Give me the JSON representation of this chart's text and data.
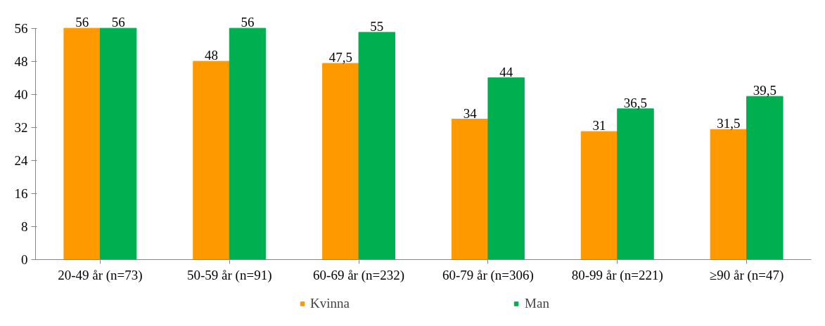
{
  "chart_data": {
    "type": "bar",
    "categories": [
      "20-49 år (n=73)",
      "50-59 år (n=91)",
      "60-69 år (n=232)",
      "60-79 år (n=306)",
      "80-99 år (n=221)",
      "≥90 år (n=47)"
    ],
    "series": [
      {
        "name": "Kvinna",
        "color": "#ff9900",
        "values": [
          56,
          48,
          47.5,
          34,
          31,
          31.5
        ],
        "value_labels": [
          "56",
          "48",
          "47,5",
          "34",
          "31",
          "31,5"
        ]
      },
      {
        "name": "Man",
        "color": "#00b050",
        "values": [
          56,
          56,
          55,
          44,
          36.5,
          39.5
        ],
        "value_labels": [
          "56",
          "56",
          "55",
          "44",
          "36,5",
          "39,5"
        ]
      }
    ],
    "ylim": [
      0,
      56
    ],
    "yticks": [
      0,
      8,
      16,
      24,
      32,
      40,
      48,
      56
    ],
    "grid": false,
    "legend": "bottom"
  }
}
